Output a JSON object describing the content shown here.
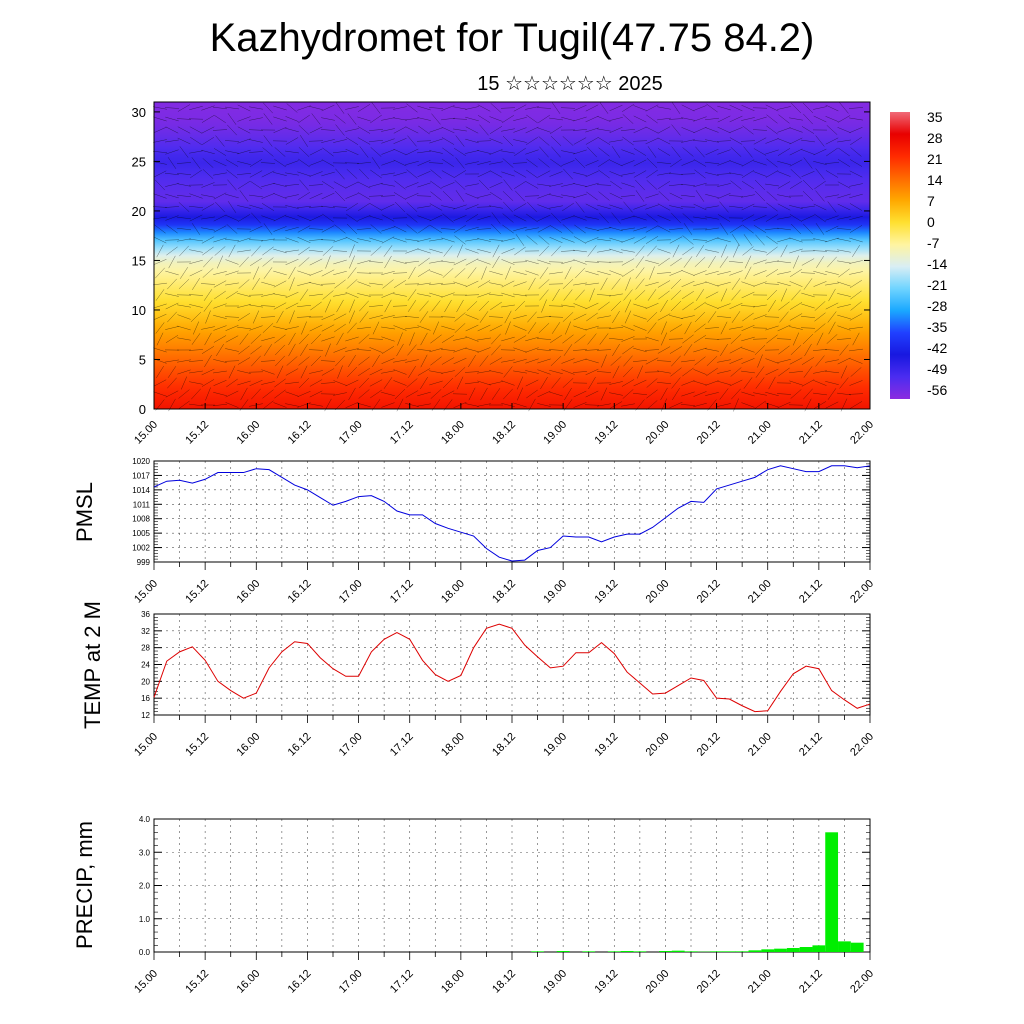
{
  "header": {
    "title": "Kazhydromet for Tugil(47.75 84.2)",
    "subtitle": "15 ☆☆☆☆☆☆ 2025"
  },
  "time_labels": [
    "15.00",
    "15.12",
    "16.00",
    "16.12",
    "17.00",
    "17.12",
    "18.00",
    "18.12",
    "19.00",
    "19.12",
    "20.00",
    "20.12",
    "21.00",
    "21.12",
    "22.00"
  ],
  "chart_data": [
    {
      "type": "heatmap",
      "title": "",
      "xlabel": "",
      "ylabel": "",
      "x": [
        "15.00",
        "15.12",
        "16.00",
        "16.12",
        "17.00",
        "17.12",
        "18.00",
        "18.12",
        "19.00",
        "19.12",
        "20.00",
        "20.12",
        "21.00",
        "21.12",
        "22.00"
      ],
      "ylim": [
        0,
        31
      ],
      "yticks": [
        0,
        5,
        10,
        15,
        20,
        25,
        30
      ],
      "colorbar_labels": [
        "35",
        "28",
        "21",
        "14",
        "7",
        "0",
        "-7",
        "-14",
        "-21",
        "-28",
        "-35",
        "-42",
        "-49",
        "-56"
      ],
      "colorbar_range": [
        -63,
        42
      ],
      "colors": [
        "#8b2be0",
        "#4b2cf0",
        "#1818e0",
        "#2040ff",
        "#1aa8ff",
        "#6fd4ff",
        "#d9eef4",
        "#fff4a0",
        "#ffe030",
        "#ffa800",
        "#ff6a00",
        "#ff2a00",
        "#e80000",
        "#f06a78"
      ],
      "approx_temperature_by_height": {
        "heights": [
          0,
          2,
          5,
          8,
          10,
          13,
          15,
          17,
          19,
          21,
          23,
          25,
          27,
          29,
          31
        ],
        "values": [
          30,
          26,
          18,
          10,
          4,
          -4,
          -10,
          -25,
          -45,
          -58,
          -56,
          -52,
          -57,
          -61,
          -62
        ]
      },
      "has_wind_barbs": true
    },
    {
      "type": "line",
      "ylabel": "PMSL",
      "ylim": [
        999,
        1020
      ],
      "yticks": [
        999,
        1002,
        1005,
        1008,
        1011,
        1014,
        1017,
        1020
      ],
      "color": "#0000dd",
      "x_range": [
        0,
        7
      ],
      "values": [
        1014.6,
        1015.8,
        1016.0,
        1015.4,
        1016.2,
        1017.6,
        1017.6,
        1017.6,
        1018.4,
        1018.2,
        1016.6,
        1015.0,
        1014.0,
        1012.4,
        1010.8,
        1011.6,
        1012.6,
        1012.8,
        1011.6,
        1009.6,
        1008.8,
        1008.8,
        1007.0,
        1006.0,
        1005.2,
        1004.4,
        1001.8,
        1000.0,
        999.2,
        999.4,
        1001.4,
        1002.0,
        1004.4,
        1004.2,
        1004.2,
        1003.2,
        1004.2,
        1004.8,
        1004.8,
        1006.2,
        1008.2,
        1010.2,
        1011.6,
        1011.4,
        1014.2,
        1015.0,
        1015.8,
        1016.6,
        1018.2,
        1019.0,
        1018.4,
        1017.8,
        1017.8,
        1019.0,
        1019.0,
        1018.6,
        1019.0
      ]
    },
    {
      "type": "line",
      "ylabel": "TEMP at 2 M",
      "ylim": [
        12,
        36
      ],
      "yticks": [
        12,
        16,
        20,
        24,
        28,
        32,
        36
      ],
      "color": "#dd0000",
      "x_range": [
        0,
        7
      ],
      "values": [
        16.2,
        24.8,
        27.0,
        28.2,
        25.0,
        20.0,
        17.8,
        16.0,
        17.2,
        23.2,
        27.0,
        29.4,
        29.0,
        25.6,
        23.0,
        21.2,
        21.2,
        27.0,
        30.0,
        31.6,
        30.0,
        25.0,
        21.6,
        20.0,
        21.4,
        28.0,
        32.6,
        33.6,
        32.6,
        28.6,
        25.8,
        23.2,
        23.6,
        26.8,
        26.8,
        29.2,
        26.6,
        22.2,
        19.6,
        17.0,
        17.2,
        19.0,
        20.8,
        20.2,
        16.0,
        15.8,
        14.2,
        12.8,
        13.0,
        17.6,
        21.8,
        23.6,
        23.0,
        17.8,
        15.6,
        13.6,
        14.6
      ]
    },
    {
      "type": "bar",
      "ylabel": "PRECIP, mm",
      "ylim": [
        0,
        4
      ],
      "yticks": [
        "0.0",
        "1.0",
        "2.0",
        "3.0",
        "4.0"
      ],
      "color": "#00ee00",
      "x_range": [
        0,
        7
      ],
      "bars": [
        {
          "t": 3.75,
          "value": 0.02
        },
        {
          "t": 4.0,
          "value": 0.03
        },
        {
          "t": 4.25,
          "value": 0.02
        },
        {
          "t": 4.5,
          "value": 0.02
        },
        {
          "t": 4.625,
          "value": 0.03
        },
        {
          "t": 4.75,
          "value": 0.02
        },
        {
          "t": 5.0,
          "value": 0.03
        },
        {
          "t": 5.125,
          "value": 0.04
        },
        {
          "t": 5.25,
          "value": 0.02
        },
        {
          "t": 5.375,
          "value": 0.01
        },
        {
          "t": 5.5,
          "value": 0.02
        },
        {
          "t": 5.625,
          "value": 0.02
        },
        {
          "t": 5.75,
          "value": 0.02
        },
        {
          "t": 5.875,
          "value": 0.05
        },
        {
          "t": 6.0,
          "value": 0.08
        },
        {
          "t": 6.125,
          "value": 0.1
        },
        {
          "t": 6.25,
          "value": 0.12
        },
        {
          "t": 6.375,
          "value": 0.15
        },
        {
          "t": 6.5,
          "value": 0.2
        },
        {
          "t": 6.625,
          "value": 3.6
        },
        {
          "t": 6.75,
          "value": 0.32
        },
        {
          "t": 6.875,
          "value": 0.28
        },
        {
          "t": 7.0,
          "value": 0.0
        }
      ]
    }
  ]
}
